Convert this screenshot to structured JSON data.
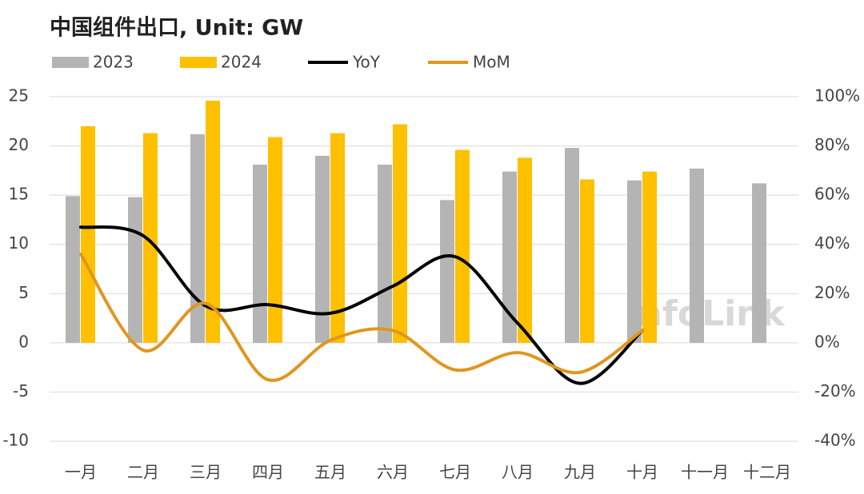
{
  "chart_data": {
    "type": "bar",
    "title": "中国组件出口, Unit: GW",
    "watermark": "InfoLink",
    "categories": [
      "一月",
      "二月",
      "三月",
      "四月",
      "五月",
      "六月",
      "七月",
      "八月",
      "九月",
      "十月",
      "十一月",
      "十二月"
    ],
    "series": [
      {
        "name": "2023",
        "type": "bar",
        "color": "#b4b4b4",
        "values": [
          14.9,
          14.8,
          21.2,
          18.1,
          19.0,
          18.1,
          14.5,
          17.4,
          19.8,
          16.5,
          17.7,
          16.2
        ]
      },
      {
        "name": "2024",
        "type": "bar",
        "color": "#ffc000",
        "values": [
          22.0,
          21.3,
          24.6,
          20.9,
          21.3,
          22.2,
          19.6,
          18.8,
          16.6,
          17.4,
          null,
          null
        ]
      },
      {
        "name": "YoY",
        "type": "line",
        "axis": "y2",
        "color": "#000000",
        "values": [
          47,
          43.5,
          15,
          15.5,
          12,
          23,
          35,
          8,
          -16.5,
          5,
          null,
          null
        ]
      },
      {
        "name": "MoM",
        "type": "line",
        "axis": "y2",
        "color": "#e0961e",
        "values": [
          36,
          -3,
          16,
          -15,
          1,
          5,
          -11,
          -4,
          -12,
          5,
          null,
          null
        ]
      }
    ],
    "ylim": [
      -10,
      25
    ],
    "yticks": [
      -10,
      -5,
      0,
      5,
      10,
      15,
      20,
      25
    ],
    "y2lim": [
      -40,
      100
    ],
    "y2ticks": [
      {
        "value": -40,
        "label": "-40%"
      },
      {
        "value": -20,
        "label": "-20%"
      },
      {
        "value": 0,
        "label": "0%"
      },
      {
        "value": 20,
        "label": "20%"
      },
      {
        "value": 40,
        "label": "40%"
      },
      {
        "value": 60,
        "label": "60%"
      },
      {
        "value": 80,
        "label": "80%"
      },
      {
        "value": 100,
        "label": "100%"
      }
    ],
    "grid": true
  }
}
